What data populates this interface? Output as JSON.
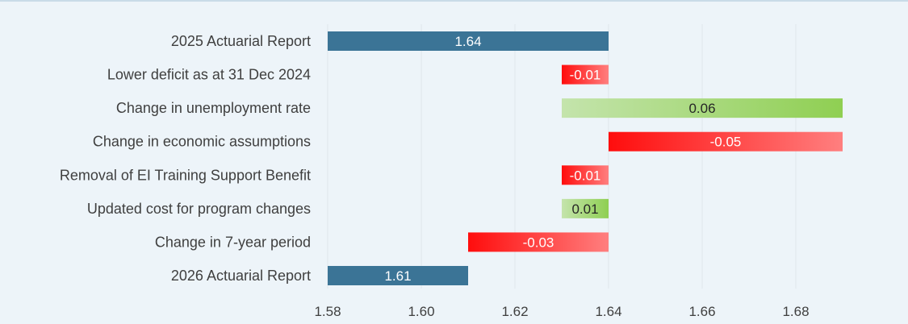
{
  "chart_data": {
    "type": "bar",
    "orientation": "horizontal",
    "subtype": "waterfall",
    "title": "",
    "xlabel": "",
    "ylabel": "",
    "xlim": [
      1.58,
      1.69
    ],
    "x_ticks": [
      "1.58",
      "1.60",
      "1.62",
      "1.64",
      "1.66",
      "1.68"
    ],
    "grid": "vertical",
    "legend": "none",
    "bars": [
      {
        "category": "2025 Actuarial Report",
        "start": 1.58,
        "end": 1.64,
        "label": "1.64",
        "kind": "total"
      },
      {
        "category": "Lower deficit as at 31 Dec 2024",
        "start": 1.63,
        "end": 1.64,
        "label": "-0.01",
        "kind": "decrease"
      },
      {
        "category": "Change in unemployment rate",
        "start": 1.63,
        "end": 1.69,
        "label": "0.06",
        "kind": "increase"
      },
      {
        "category": "Change in economic assumptions",
        "start": 1.64,
        "end": 1.69,
        "label": "-0.05",
        "kind": "decrease"
      },
      {
        "category": "Removal of EI Training Support Benefit",
        "start": 1.63,
        "end": 1.64,
        "label": "-0.01",
        "kind": "decrease"
      },
      {
        "category": "Updated cost for program changes",
        "start": 1.63,
        "end": 1.64,
        "label": "0.01",
        "kind": "increase"
      },
      {
        "category": "Change in 7-year period",
        "start": 1.61,
        "end": 1.64,
        "label": "-0.03",
        "kind": "decrease"
      },
      {
        "category": "2026 Actuarial Report",
        "start": 1.58,
        "end": 1.61,
        "label": "1.61",
        "kind": "total"
      }
    ],
    "colors": {
      "total": "#3b7496",
      "increase_light": "#c4e4ac",
      "increase_dark": "#8fcf52",
      "decrease_light": "#ff7f7f",
      "decrease_dark": "#ff0d0d",
      "grid": "#dfe6ec",
      "text": "#3f3f3f",
      "label_on_dark": "#ffffff",
      "label_on_light": "#262626"
    }
  }
}
